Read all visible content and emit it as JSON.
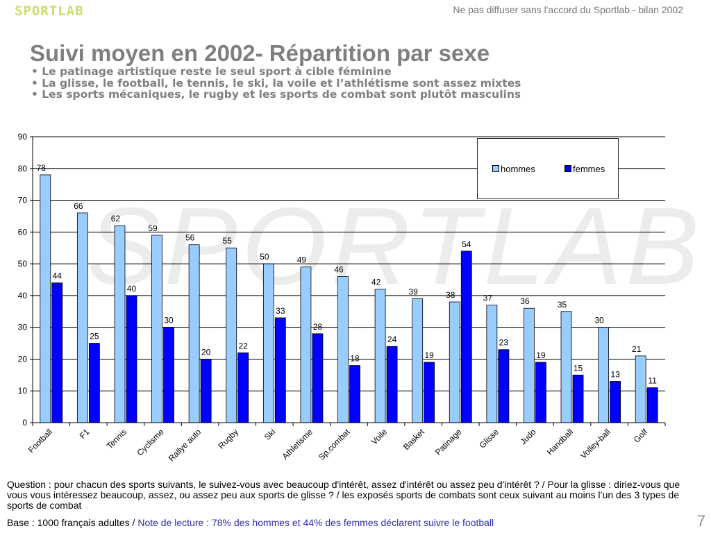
{
  "header": {
    "logo": "SPORTLAB",
    "disclaimer": "Ne pas diffuser sans l'accord du Sportlab - bilan 2002"
  },
  "title": "Suivi moyen en 2002- Répartition par sexe",
  "bullets": [
    "• Le patinage artistique reste le seul sport à cible féminine",
    "• La glisse, le football, le tennis, le ski, la voile et l’athlétisme sont assez mixtes",
    "• Les sports mécaniques, le rugby et les sports de combat sont plutôt masculins"
  ],
  "watermark": "SPORTLAB",
  "chart_data": {
    "type": "bar",
    "categories": [
      "Football",
      "F1",
      "Tennis",
      "Cyclisme",
      "Rallye auto",
      "Rugby",
      "Ski",
      "Athletisme",
      "Sp.combat",
      "Voile",
      "Basket",
      "Patinage",
      "Glisse",
      "Judo",
      "Handball",
      "Volley-ball",
      "Golf"
    ],
    "series": [
      {
        "name": "hommes",
        "color": "#99ccff",
        "values": [
          78,
          66,
          62,
          59,
          56,
          55,
          50,
          49,
          46,
          42,
          39,
          38,
          37,
          36,
          35,
          30,
          21
        ]
      },
      {
        "name": "femmes",
        "color": "#0000ff",
        "values": [
          44,
          25,
          40,
          30,
          20,
          22,
          33,
          28,
          18,
          24,
          19,
          54,
          23,
          19,
          15,
          13,
          11
        ]
      }
    ],
    "ylim": [
      0,
      90
    ],
    "yticks": [
      0,
      10,
      20,
      30,
      40,
      50,
      60,
      70,
      80,
      90
    ],
    "grid": true,
    "legend_position": "top-right"
  },
  "footer": {
    "question": "Question : pour chacun des sports suivants, le suivez-vous avec beaucoup d'intérêt, assez d'intérêt ou assez peu d'intérêt ? / Pour la glisse : diriez-vous que vous vous intéressez beaucoup, assez, ou assez peu aux sports de glisse ? / les exposés sports de combats sont ceux suivant au moins l’un des 3 types de sports de combat",
    "base": "Base : 1000 français adultes / ",
    "note": "Note de lecture : 78% des hommes et 44% des femmes déclarent suivre le football"
  },
  "page_number": "7"
}
